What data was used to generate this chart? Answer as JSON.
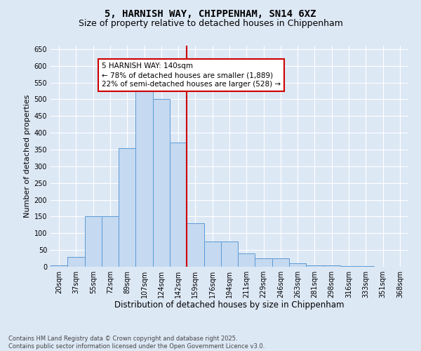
{
  "title1": "5, HARNISH WAY, CHIPPENHAM, SN14 6XZ",
  "title2": "Size of property relative to detached houses in Chippenham",
  "xlabel": "Distribution of detached houses by size in Chippenham",
  "ylabel": "Number of detached properties",
  "bin_labels": [
    "20sqm",
    "37sqm",
    "55sqm",
    "72sqm",
    "89sqm",
    "107sqm",
    "124sqm",
    "142sqm",
    "159sqm",
    "176sqm",
    "194sqm",
    "211sqm",
    "229sqm",
    "246sqm",
    "263sqm",
    "281sqm",
    "298sqm",
    "316sqm",
    "333sqm",
    "351sqm",
    "368sqm"
  ],
  "bar_values": [
    5,
    30,
    150,
    150,
    355,
    530,
    500,
    370,
    130,
    75,
    75,
    40,
    25,
    25,
    10,
    5,
    5,
    3,
    2,
    0,
    0
  ],
  "bar_color": "#c5d9f0",
  "bar_edge_color": "#5b9bd5",
  "vline_x_label": "142sqm",
  "vline_color": "#cc0000",
  "annotation_text": "5 HARNISH WAY: 140sqm\n← 78% of detached houses are smaller (1,889)\n22% of semi-detached houses are larger (528) →",
  "annotation_box_color": "#ffffff",
  "annotation_box_edge": "#cc0000",
  "ylim": [
    0,
    660
  ],
  "yticks": [
    0,
    50,
    100,
    150,
    200,
    250,
    300,
    350,
    400,
    450,
    500,
    550,
    600,
    650
  ],
  "bg_color": "#dde8f5",
  "plot_bg": "#dde8f5",
  "footer_text": "Contains HM Land Registry data © Crown copyright and database right 2025.\nContains public sector information licensed under the Open Government Licence v3.0.",
  "title_fontsize": 10,
  "subtitle_fontsize": 9,
  "tick_fontsize": 7,
  "xlabel_fontsize": 8.5,
  "ylabel_fontsize": 8,
  "ann_fontsize": 7.5
}
